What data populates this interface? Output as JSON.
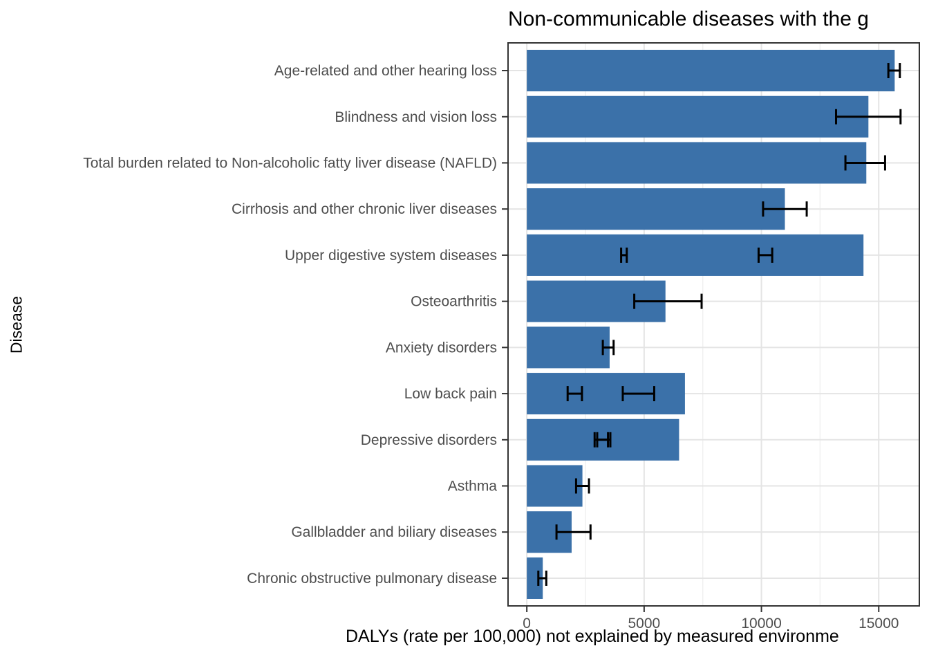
{
  "chart_data": {
    "type": "bar",
    "orientation": "horizontal",
    "title": "Non-communicable diseases with the g",
    "xlabel": "DALYs (rate per 100,000) not explained by measured environme",
    "ylabel": "Disease",
    "categories": [
      "Age-related and other hearing loss",
      "Blindness and vision loss",
      "Total burden related to Non-alcoholic fatty liver disease (NAFLD)",
      "Cirrhosis and other chronic liver diseases",
      "Upper digestive system diseases",
      "Osteoarthritis",
      "Anxiety disorders",
      "Low back pain",
      "Depressive disorders",
      "Asthma",
      "Gallbladder and biliary diseases",
      "Chronic obstructive pulmonary disease"
    ],
    "values": [
      15680,
      14560,
      14470,
      11000,
      14350,
      5910,
      3530,
      6740,
      6490,
      2370,
      1910,
      680
    ],
    "error_bars": [
      [
        [
          15410,
          15900
        ]
      ],
      [
        [
          13180,
          15930
        ]
      ],
      [
        [
          13580,
          15270
        ]
      ],
      [
        [
          10070,
          11930
        ]
      ],
      [
        [
          4020,
          4260
        ],
        [
          9880,
          10460
        ]
      ],
      [
        [
          4580,
          7450
        ]
      ],
      [
        [
          3240,
          3700
        ]
      ],
      [
        [
          1740,
          2350
        ],
        [
          4090,
          5430
        ]
      ],
      [
        [
          2890,
          3460
        ],
        [
          3000,
          3560
        ]
      ],
      [
        [
          2100,
          2650
        ]
      ],
      [
        [
          1265,
          2715
        ]
      ],
      [
        [
          490,
          830
        ]
      ]
    ],
    "xlim": [
      -800,
      16730
    ],
    "xticks": [
      0,
      5000,
      10000,
      15000
    ],
    "xtick_labels": [
      "0",
      "5000",
      "10000",
      "15000"
    ],
    "xminor": [
      2500,
      7500,
      12500
    ],
    "grid": "major and minor vertical, major horizontal per category",
    "legend": "none",
    "bar_width_fraction": 0.9
  },
  "colors": {
    "bar": "#3B71A9",
    "error_bar": "#000000",
    "grid_major": "#E4E4E4",
    "grid_minor": "#F1F1F1",
    "axis_text": "#4D4D4D",
    "axis_tick": "#333333",
    "panel_border": "#333333",
    "title_text": "#000000",
    "background": "#FFFFFF"
  }
}
